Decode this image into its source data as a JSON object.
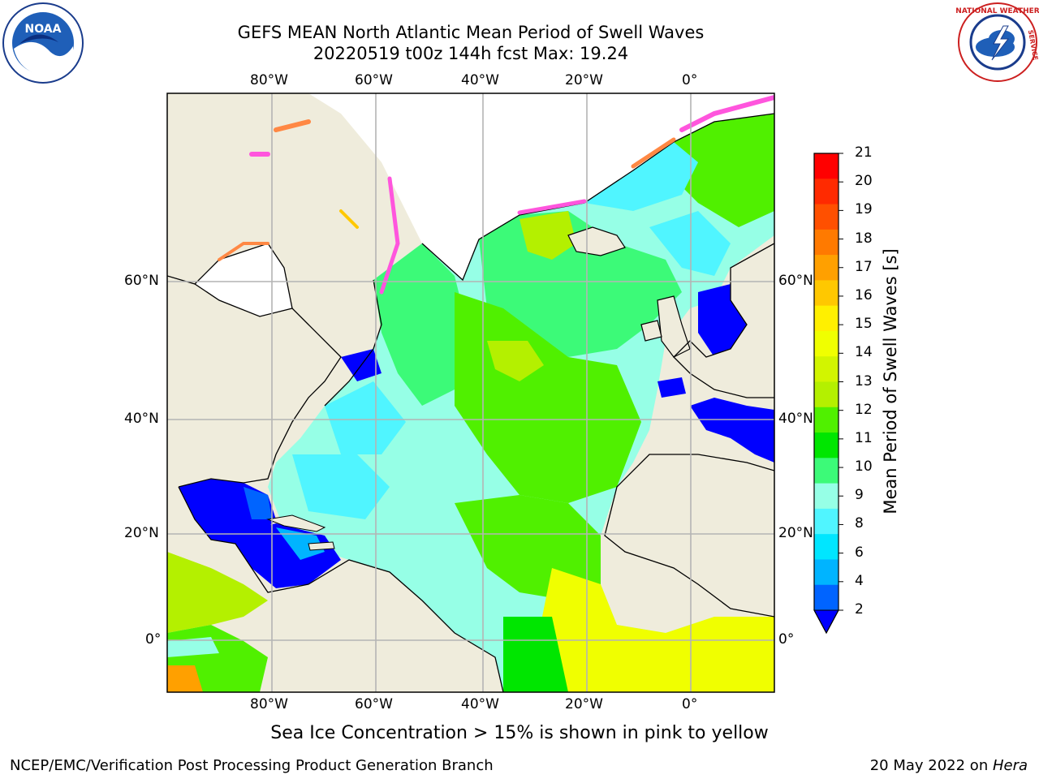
{
  "title": {
    "line1": "GEFS MEAN North Atlantic Mean Period of Swell Waves",
    "line2": "20220519 t00z 144h fcst   Max: 19.24"
  },
  "map": {
    "lon_labels_top": [
      "80°W",
      "60°W",
      "40°W",
      "20°W",
      "0°"
    ],
    "lon_labels_bottom": [
      "80°W",
      "60°W",
      "40°W",
      "20°W",
      "0°"
    ],
    "lat_labels_left": [
      "60°N",
      "40°N",
      "20°N",
      "0°"
    ],
    "lat_labels_right": [
      "60°N",
      "40°N",
      "20°N",
      "0°"
    ],
    "land_color": "#efecdc",
    "grid_color": "#b4b4b4"
  },
  "colorbar": {
    "label": "Mean Period of Swell Waves [s]",
    "ticks": [
      "21",
      "20",
      "19",
      "18",
      "17",
      "16",
      "15",
      "14",
      "13",
      "12",
      "11",
      "10",
      "9",
      "8",
      "6",
      "4",
      "2"
    ],
    "colors_top_to_bottom": [
      "#ff0000",
      "#ff2a00",
      "#ff5000",
      "#ff7a00",
      "#ffa000",
      "#ffc800",
      "#fff000",
      "#f0ff00",
      "#d2f500",
      "#b4f000",
      "#50f000",
      "#00e600",
      "#3cfa78",
      "#96ffe6",
      "#50f5ff",
      "#00e6ff",
      "#00b4ff",
      "#0064ff"
    ],
    "extend_color": "#0000ff"
  },
  "note": "Sea Ice Concentration > 15% is shown in pink to yellow",
  "credits": {
    "left": "NCEP/EMC/Verification Post Processing Product Generation Branch",
    "right_prefix": "20 May 2022 on ",
    "right_host": "Hera"
  },
  "logos": {
    "left": "noaa-logo",
    "right": "nws-logo"
  }
}
